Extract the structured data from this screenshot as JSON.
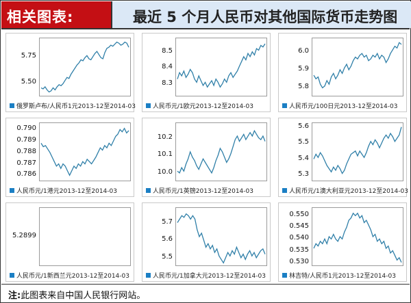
{
  "header": {
    "label": "相关图表:",
    "title": "最近 5 个月人民币对其他国际货币走势图"
  },
  "footer": {
    "prefix": "注:",
    "note": "此图表来自中国人民银行网站。"
  },
  "colors": {
    "line": "#2f7fa8",
    "legend": "#1b7fc4",
    "header_red": "#c40f14",
    "header_blue": "#dbe8f6"
  },
  "chart_data": [
    {
      "type": "line",
      "legend": "俄罗斯卢布/人民币1元2013-12至2014-03",
      "yticks": [
        "5.75",
        "5.50"
      ],
      "ylim": [
        5.38,
        5.92
      ],
      "values": [
        5.45,
        5.44,
        5.46,
        5.43,
        5.41,
        5.42,
        5.45,
        5.43,
        5.46,
        5.48,
        5.47,
        5.49,
        5.52,
        5.55,
        5.54,
        5.58,
        5.61,
        5.64,
        5.67,
        5.69,
        5.72,
        5.71,
        5.74,
        5.76,
        5.73,
        5.72,
        5.75,
        5.78,
        5.8,
        5.77,
        5.74,
        5.73,
        5.79,
        5.83,
        5.84,
        5.86,
        5.85,
        5.87,
        5.89,
        5.88,
        5.86,
        5.87,
        5.89,
        5.88,
        5.84
      ]
    },
    {
      "type": "line",
      "legend": "人民币元/1欧元2013-12至2014-03",
      "yticks": [
        "8.5",
        "8.4",
        "8.3"
      ],
      "ylim": [
        8.23,
        8.58
      ],
      "values": [
        8.33,
        8.37,
        8.35,
        8.38,
        8.34,
        8.36,
        8.39,
        8.37,
        8.33,
        8.31,
        8.35,
        8.32,
        8.29,
        8.31,
        8.28,
        8.3,
        8.32,
        8.29,
        8.33,
        8.31,
        8.28,
        8.3,
        8.33,
        8.31,
        8.35,
        8.37,
        8.34,
        8.36,
        8.38,
        8.41,
        8.44,
        8.47,
        8.45,
        8.49,
        8.47,
        8.5,
        8.48,
        8.52,
        8.51,
        8.54,
        8.53,
        8.55
      ]
    },
    {
      "type": "line",
      "legend": "人民币元/100日元2013-12至2014-03",
      "yticks": [
        "6.0",
        "5.9",
        "5.8"
      ],
      "ylim": [
        5.76,
        6.07
      ],
      "values": [
        5.87,
        5.85,
        5.86,
        5.82,
        5.8,
        5.81,
        5.84,
        5.82,
        5.86,
        5.88,
        5.85,
        5.87,
        5.9,
        5.88,
        5.91,
        5.93,
        5.9,
        5.92,
        5.95,
        5.97,
        5.96,
        5.98,
        5.99,
        5.97,
        5.98,
        5.95,
        5.96,
        5.98,
        5.97,
        5.99,
        5.96,
        5.98,
        5.97,
        5.94,
        5.96,
        5.99,
        6.01,
        6.03,
        6.02,
        6.05,
        6.04
      ]
    },
    {
      "type": "line",
      "legend": "人民币元/1港元2013-12至2014-03",
      "yticks": [
        "0.790",
        "0.789",
        "0.788",
        "0.787",
        "0.786"
      ],
      "ylim": [
        0.7856,
        0.7905
      ],
      "values": [
        0.7888,
        0.7885,
        0.7886,
        0.7883,
        0.788,
        0.7876,
        0.7872,
        0.7868,
        0.787,
        0.7866,
        0.787,
        0.7868,
        0.7864,
        0.786,
        0.7864,
        0.7868,
        0.7866,
        0.787,
        0.7868,
        0.7872,
        0.787,
        0.7874,
        0.7872,
        0.787,
        0.7873,
        0.7876,
        0.788,
        0.7884,
        0.7882,
        0.7886,
        0.7884,
        0.7888,
        0.7886,
        0.789,
        0.7894,
        0.7896,
        0.79,
        0.7898,
        0.7901,
        0.7897,
        0.7899
      ]
    },
    {
      "type": "line",
      "legend": "人民币元/1英镑2013-12至2014-03",
      "yticks": [
        "10.2",
        "10.1",
        "10.0"
      ],
      "ylim": [
        9.96,
        10.28
      ],
      "values": [
        10.01,
        10.0,
        10.03,
        10.01,
        10.05,
        10.08,
        10.12,
        10.09,
        10.07,
        10.04,
        10.02,
        10.05,
        10.08,
        10.06,
        10.04,
        10.02,
        10.0,
        10.03,
        10.07,
        10.1,
        10.14,
        10.12,
        10.09,
        10.06,
        10.08,
        10.11,
        10.15,
        10.19,
        10.21,
        10.18,
        10.2,
        10.22,
        10.19,
        10.21,
        10.23,
        10.21,
        10.24,
        10.22,
        10.2,
        10.19,
        10.21,
        10.18
      ]
    },
    {
      "type": "line",
      "legend": "人民币元/1澳大利亚元2013-12至2014-03",
      "yticks": [
        "5.6",
        "5.5",
        "5.4",
        "5.3"
      ],
      "ylim": [
        5.27,
        5.62
      ],
      "values": [
        5.4,
        5.43,
        5.41,
        5.44,
        5.42,
        5.39,
        5.36,
        5.34,
        5.32,
        5.35,
        5.33,
        5.36,
        5.34,
        5.31,
        5.33,
        5.37,
        5.4,
        5.43,
        5.44,
        5.45,
        5.42,
        5.45,
        5.43,
        5.41,
        5.44,
        5.48,
        5.51,
        5.49,
        5.52,
        5.5,
        5.47,
        5.5,
        5.53,
        5.55,
        5.53,
        5.56,
        5.54,
        5.51,
        5.53,
        5.55,
        5.6
      ]
    },
    {
      "type": "line",
      "legend": "人民币元/1新西兰元2013-12至2014-03",
      "yticks": [
        "5.2899"
      ],
      "ylim": [
        5.2,
        5.4
      ],
      "values": []
    },
    {
      "type": "line",
      "legend": "人民币元/1加拿大元2013-12至2014-03",
      "yticks": [
        "5.7",
        "5.6",
        "5.5"
      ],
      "ylim": [
        5.46,
        5.78
      ],
      "values": [
        5.7,
        5.72,
        5.74,
        5.73,
        5.75,
        5.74,
        5.72,
        5.74,
        5.72,
        5.66,
        5.62,
        5.64,
        5.6,
        5.56,
        5.58,
        5.55,
        5.57,
        5.53,
        5.55,
        5.51,
        5.49,
        5.47,
        5.5,
        5.53,
        5.51,
        5.54,
        5.52,
        5.56,
        5.53,
        5.5,
        5.52,
        5.49,
        5.52,
        5.54,
        5.51,
        5.53,
        5.5,
        5.52,
        5.54,
        5.55,
        5.52
      ]
    },
    {
      "type": "line",
      "legend": "林吉特/人民币1元2013-12至2014-03",
      "yticks": [
        "0.550",
        "0.545",
        "0.540",
        "0.535",
        "0.530"
      ],
      "ylim": [
        0.529,
        0.553
      ],
      "values": [
        0.536,
        0.538,
        0.537,
        0.539,
        0.538,
        0.54,
        0.538,
        0.541,
        0.54,
        0.542,
        0.54,
        0.539,
        0.541,
        0.54,
        0.543,
        0.545,
        0.548,
        0.549,
        0.551,
        0.55,
        0.551,
        0.549,
        0.55,
        0.547,
        0.548,
        0.546,
        0.544,
        0.541,
        0.542,
        0.539,
        0.54,
        0.538,
        0.539,
        0.536,
        0.537,
        0.534,
        0.535,
        0.533,
        0.531,
        0.532,
        0.53
      ]
    }
  ]
}
